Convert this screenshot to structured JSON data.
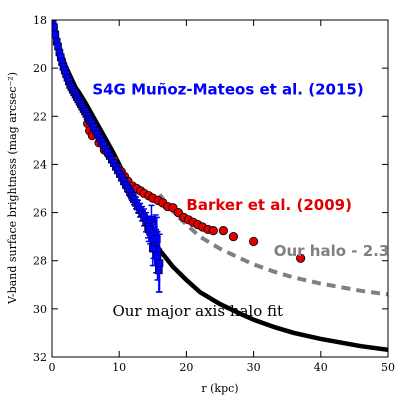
{
  "chart_data": {
    "type": "scatter",
    "xlabel": "r (kpc)",
    "ylabel": "V-band surface brightness (mag arcsec⁻²)",
    "xlim": [
      0,
      50
    ],
    "ylim": [
      32,
      18
    ],
    "y_inverted": true,
    "x_ticks": [
      "0",
      "10",
      "20",
      "30",
      "40",
      "50"
    ],
    "y_ticks": [
      "18",
      "20",
      "22",
      "24",
      "26",
      "28",
      "30",
      "32"
    ],
    "grid": false,
    "legend": "none",
    "annotations": [
      {
        "text": "S4G Muñoz-Mateos et al. (2015)",
        "color": "#0000ff",
        "at": [
          6.0,
          21.1
        ]
      },
      {
        "text": "Barker et al. (2009)",
        "color": "#e00000",
        "at": [
          20.0,
          25.9
        ]
      },
      {
        "text": "Our halo - 2.3",
        "color": "#808080",
        "at": [
          33.0,
          27.8
        ]
      },
      {
        "text": "Our major axis halo fit",
        "color": "#000000",
        "at": [
          9.0,
          30.3
        ]
      }
    ],
    "series": [
      {
        "id": "halo_fit",
        "kind": "line",
        "color": "#000000",
        "style": "solid",
        "x": [
          0,
          0.5,
          1,
          1.5,
          2,
          2.5,
          3,
          3.5,
          4,
          5,
          6,
          7,
          8,
          9,
          10,
          11,
          12,
          13,
          14,
          15,
          16,
          18,
          20,
          22,
          25,
          28,
          30,
          33,
          36,
          40,
          43,
          46,
          50
        ],
        "y": [
          18.0,
          18.6,
          19.1,
          19.5,
          19.9,
          20.2,
          20.5,
          20.8,
          21.0,
          21.45,
          21.95,
          22.45,
          22.95,
          23.45,
          24.0,
          24.6,
          25.2,
          25.85,
          26.5,
          27.05,
          27.55,
          28.25,
          28.8,
          29.3,
          29.8,
          30.2,
          30.45,
          30.75,
          31.0,
          31.25,
          31.4,
          31.55,
          31.7
        ]
      },
      {
        "id": "halo_minus_2_3",
        "kind": "line",
        "color": "#808080",
        "style": "dashed",
        "x": [
          16,
          18,
          20,
          22,
          25,
          28,
          30,
          33,
          36,
          40,
          43,
          46,
          50
        ],
        "y": [
          25.25,
          25.95,
          26.5,
          27.0,
          27.5,
          27.9,
          28.15,
          28.45,
          28.7,
          28.95,
          29.1,
          29.25,
          29.4
        ]
      },
      {
        "id": "barker_2009",
        "name": "Barker et al. (2009)",
        "kind": "points",
        "color": "#e00000",
        "x": [
          5.3,
          5.6,
          6.0,
          7.0,
          7.8,
          8.5,
          9.2,
          9.7,
          10.3,
          10.8,
          11.3,
          12.0,
          12.6,
          13.2,
          13.7,
          14.4,
          15.0,
          15.8,
          16.5,
          17.2,
          18.0,
          18.8,
          19.6,
          20.3,
          21.0,
          21.7,
          22.4,
          23.2,
          24.0,
          25.5,
          27.0,
          30.0,
          37.0
        ],
        "y": [
          22.3,
          22.6,
          22.8,
          23.1,
          23.4,
          23.6,
          23.8,
          24.1,
          24.3,
          24.5,
          24.7,
          24.9,
          25.0,
          25.1,
          25.2,
          25.3,
          25.4,
          25.5,
          25.6,
          25.75,
          25.8,
          26.0,
          26.2,
          26.3,
          26.4,
          26.5,
          26.6,
          26.7,
          26.75,
          26.75,
          27.0,
          27.2,
          27.9
        ]
      },
      {
        "id": "s4g_2015",
        "name": "S4G Muñoz-Mateos et al. (2015)",
        "kind": "points_with_errorbars",
        "color": "#0000ff",
        "x": [
          0.1,
          0.3,
          0.5,
          0.7,
          0.9,
          1.1,
          1.3,
          1.5,
          1.7,
          1.9,
          2.1,
          2.3,
          2.5,
          2.7,
          2.9,
          3.1,
          3.3,
          3.5,
          3.7,
          3.9,
          4.1,
          4.3,
          4.5,
          4.7,
          4.9,
          5.1,
          5.3,
          5.5,
          5.7,
          5.9,
          6.2,
          6.5,
          6.8,
          7.1,
          7.4,
          7.7,
          8.0,
          8.3,
          8.6,
          8.9,
          9.2,
          9.5,
          9.8,
          10.1,
          10.4,
          10.7,
          11.0,
          11.3,
          11.6,
          11.9,
          12.2,
          12.5,
          12.8,
          13.1,
          13.4,
          13.7,
          14.0,
          14.3,
          14.6,
          14.9,
          15.1,
          15.3,
          15.5,
          15.7,
          15.9,
          15.4,
          14.8,
          15.6,
          14.4,
          16.0,
          15.0
        ],
        "y": [
          18.0,
          18.3,
          18.6,
          18.9,
          19.1,
          19.35,
          19.55,
          19.75,
          19.95,
          20.1,
          20.25,
          20.4,
          20.55,
          20.7,
          20.8,
          20.9,
          21.0,
          21.1,
          21.2,
          21.3,
          21.4,
          21.5,
          21.6,
          21.7,
          21.8,
          21.9,
          22.0,
          22.1,
          22.2,
          22.3,
          22.45,
          22.6,
          22.75,
          22.9,
          23.05,
          23.2,
          23.35,
          23.5,
          23.65,
          23.8,
          23.95,
          24.1,
          24.25,
          24.4,
          24.55,
          24.7,
          24.85,
          25.0,
          25.15,
          25.3,
          25.45,
          25.6,
          25.75,
          25.9,
          26.05,
          26.2,
          26.4,
          26.6,
          26.8,
          27.0,
          27.2,
          27.4,
          27.6,
          27.8,
          28.4,
          26.9,
          26.3,
          27.1,
          26.7,
          28.1,
          27.5
        ],
        "yerr": [
          0.02,
          0.02,
          0.02,
          0.02,
          0.02,
          0.02,
          0.02,
          0.02,
          0.02,
          0.02,
          0.02,
          0.02,
          0.02,
          0.02,
          0.02,
          0.03,
          0.03,
          0.03,
          0.03,
          0.03,
          0.03,
          0.03,
          0.03,
          0.04,
          0.04,
          0.04,
          0.04,
          0.04,
          0.05,
          0.05,
          0.05,
          0.05,
          0.06,
          0.06,
          0.06,
          0.07,
          0.07,
          0.08,
          0.08,
          0.09,
          0.1,
          0.1,
          0.11,
          0.12,
          0.13,
          0.14,
          0.15,
          0.16,
          0.18,
          0.2,
          0.22,
          0.24,
          0.26,
          0.28,
          0.3,
          0.35,
          0.4,
          0.45,
          0.5,
          0.6,
          0.7,
          0.8,
          0.9,
          1.0,
          0.9,
          0.8,
          0.6,
          0.9,
          0.5,
          1.2,
          0.7
        ]
      }
    ]
  }
}
